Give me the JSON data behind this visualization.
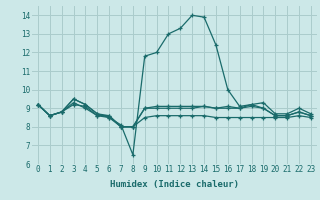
{
  "xlabel": "Humidex (Indice chaleur)",
  "bg_color": "#cce8e8",
  "grid_color": "#aacccc",
  "line_color": "#1a6b6b",
  "ylim": [
    6,
    14.5
  ],
  "xlim": [
    -0.5,
    23.5
  ],
  "yticks": [
    6,
    7,
    8,
    9,
    10,
    11,
    12,
    13,
    14
  ],
  "xticks": [
    0,
    1,
    2,
    3,
    4,
    5,
    6,
    7,
    8,
    9,
    10,
    11,
    12,
    13,
    14,
    15,
    16,
    17,
    18,
    19,
    20,
    21,
    22,
    23
  ],
  "lines": [
    {
      "x": [
        0,
        1,
        2,
        3,
        4,
        5,
        6,
        7,
        8,
        9,
        10,
        11,
        12,
        13,
        14,
        15,
        16,
        17,
        18,
        19,
        20,
        21,
        22,
        23
      ],
      "y": [
        9.2,
        8.6,
        8.8,
        9.5,
        9.2,
        8.7,
        8.5,
        8.1,
        6.5,
        11.8,
        12.0,
        13.0,
        13.3,
        14.0,
        13.9,
        12.4,
        10.0,
        9.1,
        9.2,
        9.3,
        8.7,
        8.7,
        9.0,
        8.7
      ]
    },
    {
      "x": [
        0,
        1,
        2,
        3,
        4,
        5,
        6,
        7,
        8,
        9,
        10,
        11,
        12,
        13,
        14,
        15,
        16,
        17,
        18,
        19,
        20,
        21,
        22,
        23
      ],
      "y": [
        9.2,
        8.6,
        8.8,
        9.5,
        9.2,
        8.7,
        8.6,
        8.0,
        8.0,
        9.0,
        9.0,
        9.0,
        9.0,
        9.0,
        9.1,
        9.0,
        9.1,
        9.0,
        9.2,
        9.0,
        8.6,
        8.6,
        8.8,
        8.6
      ]
    },
    {
      "x": [
        0,
        1,
        2,
        3,
        4,
        5,
        6,
        7,
        8,
        9,
        10,
        11,
        12,
        13,
        14,
        15,
        16,
        17,
        18,
        19,
        20,
        21,
        22,
        23
      ],
      "y": [
        9.2,
        8.6,
        8.8,
        9.2,
        9.1,
        8.6,
        8.6,
        8.0,
        8.0,
        9.0,
        9.1,
        9.1,
        9.1,
        9.1,
        9.1,
        9.0,
        9.0,
        9.0,
        9.1,
        9.0,
        8.6,
        8.6,
        8.8,
        8.6
      ]
    },
    {
      "x": [
        0,
        1,
        2,
        3,
        4,
        5,
        6,
        7,
        8,
        9,
        10,
        11,
        12,
        13,
        14,
        15,
        16,
        17,
        18,
        19,
        20,
        21,
        22,
        23
      ],
      "y": [
        9.2,
        8.6,
        8.8,
        9.3,
        9.0,
        8.6,
        8.5,
        8.0,
        8.0,
        8.5,
        8.6,
        8.6,
        8.6,
        8.6,
        8.6,
        8.5,
        8.5,
        8.5,
        8.5,
        8.5,
        8.5,
        8.5,
        8.6,
        8.5
      ]
    }
  ],
  "xlabel_fontsize": 6.5,
  "tick_fontsize": 5.5
}
